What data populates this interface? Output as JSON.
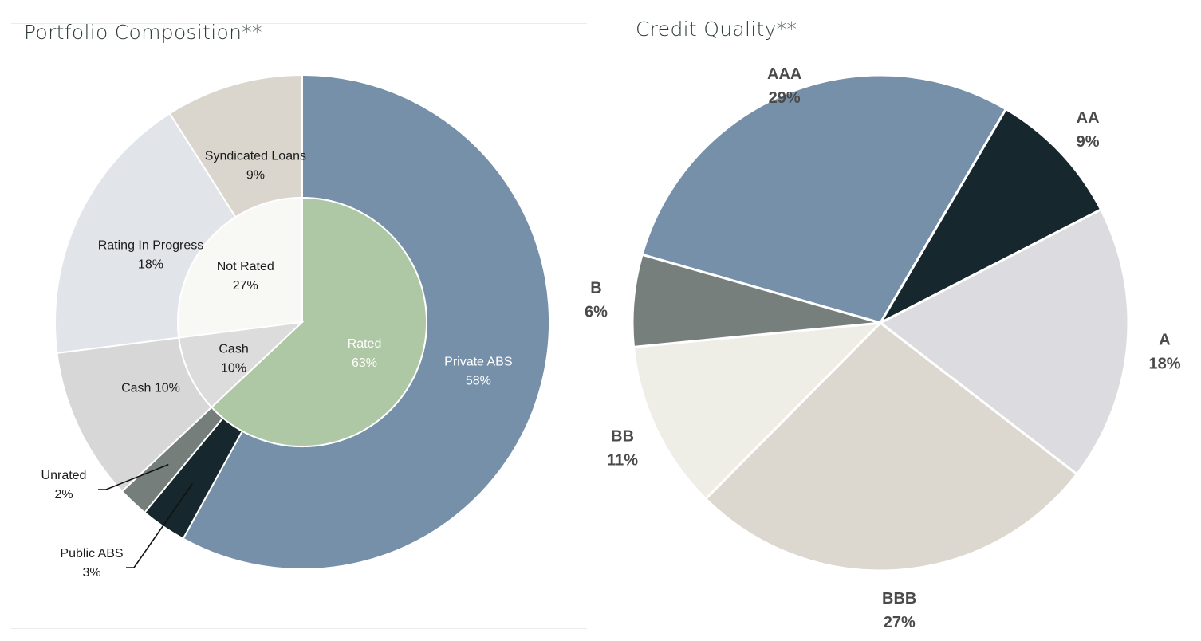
{
  "chart_data": [
    {
      "type": "pie",
      "title": "Portfolio Composition**",
      "inner_ring": [
        {
          "label": "Rated",
          "value": 63,
          "value_label": "63%",
          "color": "#aec7a4"
        },
        {
          "label": "Cash",
          "value": 10,
          "value_label": "10%",
          "color": "#dcdcdc"
        },
        {
          "label": "Not Rated",
          "value": 27,
          "value_label": "27%",
          "color": "#f8f8f5"
        }
      ],
      "outer_ring": [
        {
          "label": "Private ABS",
          "value": 58,
          "value_label": "58%",
          "color": "#7690aa"
        },
        {
          "label": "Public ABS",
          "value": 3,
          "value_label": "3%",
          "color": "#16282d"
        },
        {
          "label": "Unrated",
          "value": 2,
          "value_label": "2%",
          "color": "#757e7a"
        },
        {
          "label": "Cash 10%",
          "value": 10,
          "value_label": "",
          "color": "#d7d7d7"
        },
        {
          "label": "Rating In Progress",
          "value": 18,
          "value_label": "18%",
          "color": "#e1e4e9"
        },
        {
          "label": "Syndicated Loans",
          "value": 9,
          "value_label": "9%",
          "color": "#dbd6cd"
        }
      ]
    },
    {
      "type": "pie",
      "title": "Credit Quality**",
      "slices": [
        {
          "label": "AAA",
          "value": 29,
          "value_label": "29%",
          "color": "#7690aa"
        },
        {
          "label": "AA",
          "value": 9,
          "value_label": "9%",
          "color": "#16282d"
        },
        {
          "label": "A",
          "value": 18,
          "value_label": "18%",
          "color": "#dcdce0"
        },
        {
          "label": "BBB",
          "value": 27,
          "value_label": "27%",
          "color": "#dcd8cf"
        },
        {
          "label": "BB",
          "value": 11,
          "value_label": "11%",
          "color": "#eeede6"
        },
        {
          "label": "B",
          "value": 6,
          "value_label": "6%",
          "color": "#767f7b"
        }
      ]
    }
  ]
}
